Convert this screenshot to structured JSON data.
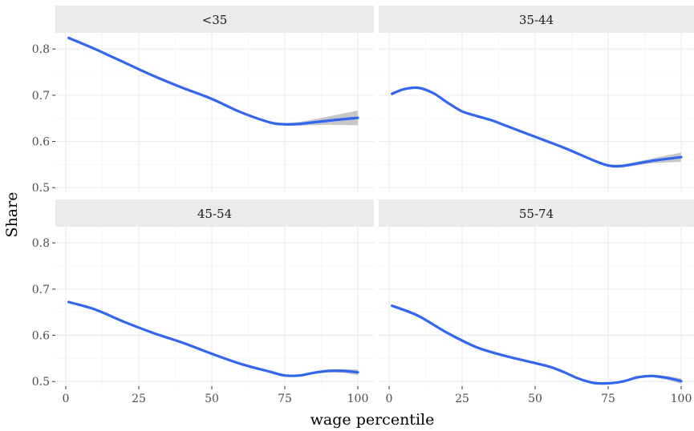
{
  "chart_data": {
    "type": "line",
    "facet_layout": "2x2",
    "xlabel": "wage percentile",
    "ylabel": "Share",
    "xlim": [
      0,
      100
    ],
    "ylim": [
      0.49,
      0.835
    ],
    "x_ticks": [
      0,
      25,
      50,
      75,
      100
    ],
    "y_ticks": [
      0.5,
      0.6,
      0.7,
      0.8
    ],
    "y_tick_labels": [
      "0.5",
      "0.6",
      "0.7",
      "0.8"
    ],
    "x_tick_labels": [
      "0",
      "25",
      "50",
      "75",
      "100"
    ],
    "grid": true,
    "line_color": "#3366ee",
    "ribbon_color": "#bdbdbd",
    "strip_bg": "#ebebeb",
    "grid_color": "#ebebeb",
    "panels": [
      {
        "title": "<35",
        "x": [
          1,
          10,
          20,
          30,
          40,
          50,
          60,
          70,
          75,
          80,
          90,
          100
        ],
        "values": [
          0.824,
          0.8,
          0.771,
          0.742,
          0.716,
          0.692,
          0.663,
          0.641,
          0.637,
          0.638,
          0.645,
          0.651
        ],
        "ribbon_half_width": [
          0.003,
          0.002,
          0.002,
          0.002,
          0.002,
          0.002,
          0.002,
          0.002,
          0.003,
          0.004,
          0.009,
          0.016
        ]
      },
      {
        "title": "35-44",
        "x": [
          1,
          5,
          10,
          15,
          20,
          25,
          30,
          35,
          40,
          50,
          60,
          70,
          75,
          80,
          90,
          100
        ],
        "values": [
          0.703,
          0.713,
          0.716,
          0.705,
          0.684,
          0.665,
          0.655,
          0.646,
          0.634,
          0.61,
          0.586,
          0.559,
          0.548,
          0.547,
          0.558,
          0.566
        ],
        "ribbon_half_width": [
          0.003,
          0.002,
          0.002,
          0.002,
          0.002,
          0.002,
          0.002,
          0.002,
          0.002,
          0.002,
          0.002,
          0.002,
          0.002,
          0.003,
          0.005,
          0.01
        ]
      },
      {
        "title": "45-54",
        "x": [
          1,
          10,
          20,
          30,
          40,
          50,
          60,
          70,
          75,
          80,
          85,
          90,
          95,
          100
        ],
        "values": [
          0.672,
          0.656,
          0.629,
          0.605,
          0.584,
          0.56,
          0.538,
          0.521,
          0.513,
          0.513,
          0.519,
          0.523,
          0.523,
          0.52
        ],
        "ribbon_half_width": [
          0.002,
          0.002,
          0.002,
          0.002,
          0.002,
          0.002,
          0.002,
          0.002,
          0.002,
          0.002,
          0.002,
          0.003,
          0.004,
          0.006
        ]
      },
      {
        "title": "55-74",
        "x": [
          1,
          10,
          20,
          30,
          40,
          50,
          55,
          60,
          65,
          70,
          75,
          80,
          85,
          90,
          95,
          100
        ],
        "values": [
          0.664,
          0.642,
          0.605,
          0.574,
          0.555,
          0.54,
          0.532,
          0.52,
          0.506,
          0.497,
          0.496,
          0.5,
          0.509,
          0.512,
          0.508,
          0.501
        ],
        "ribbon_half_width": [
          0.002,
          0.002,
          0.002,
          0.002,
          0.002,
          0.002,
          0.002,
          0.002,
          0.002,
          0.002,
          0.002,
          0.002,
          0.002,
          0.003,
          0.004,
          0.006
        ]
      }
    ]
  }
}
